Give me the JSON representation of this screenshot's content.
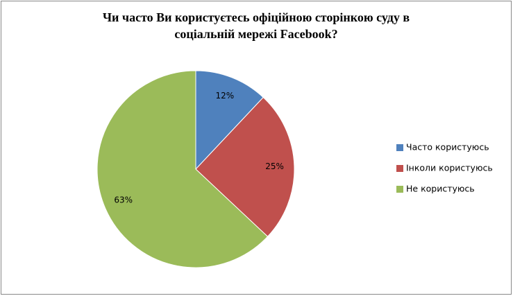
{
  "chart_data": {
    "type": "pie",
    "title": [
      "Чи часто Ви користуєтесь офіційною сторінкою суду в",
      "соціальній мережі Facebook?"
    ],
    "categories": [
      "Часто користуюсь",
      "Інколи користуюсь",
      "Не користуюсь"
    ],
    "values": [
      12,
      25,
      63
    ],
    "value_labels": [
      "12%",
      "25%",
      "63%"
    ],
    "colors": [
      "#4f81bd",
      "#c0504d",
      "#9bbb59"
    ],
    "legend": "right"
  }
}
